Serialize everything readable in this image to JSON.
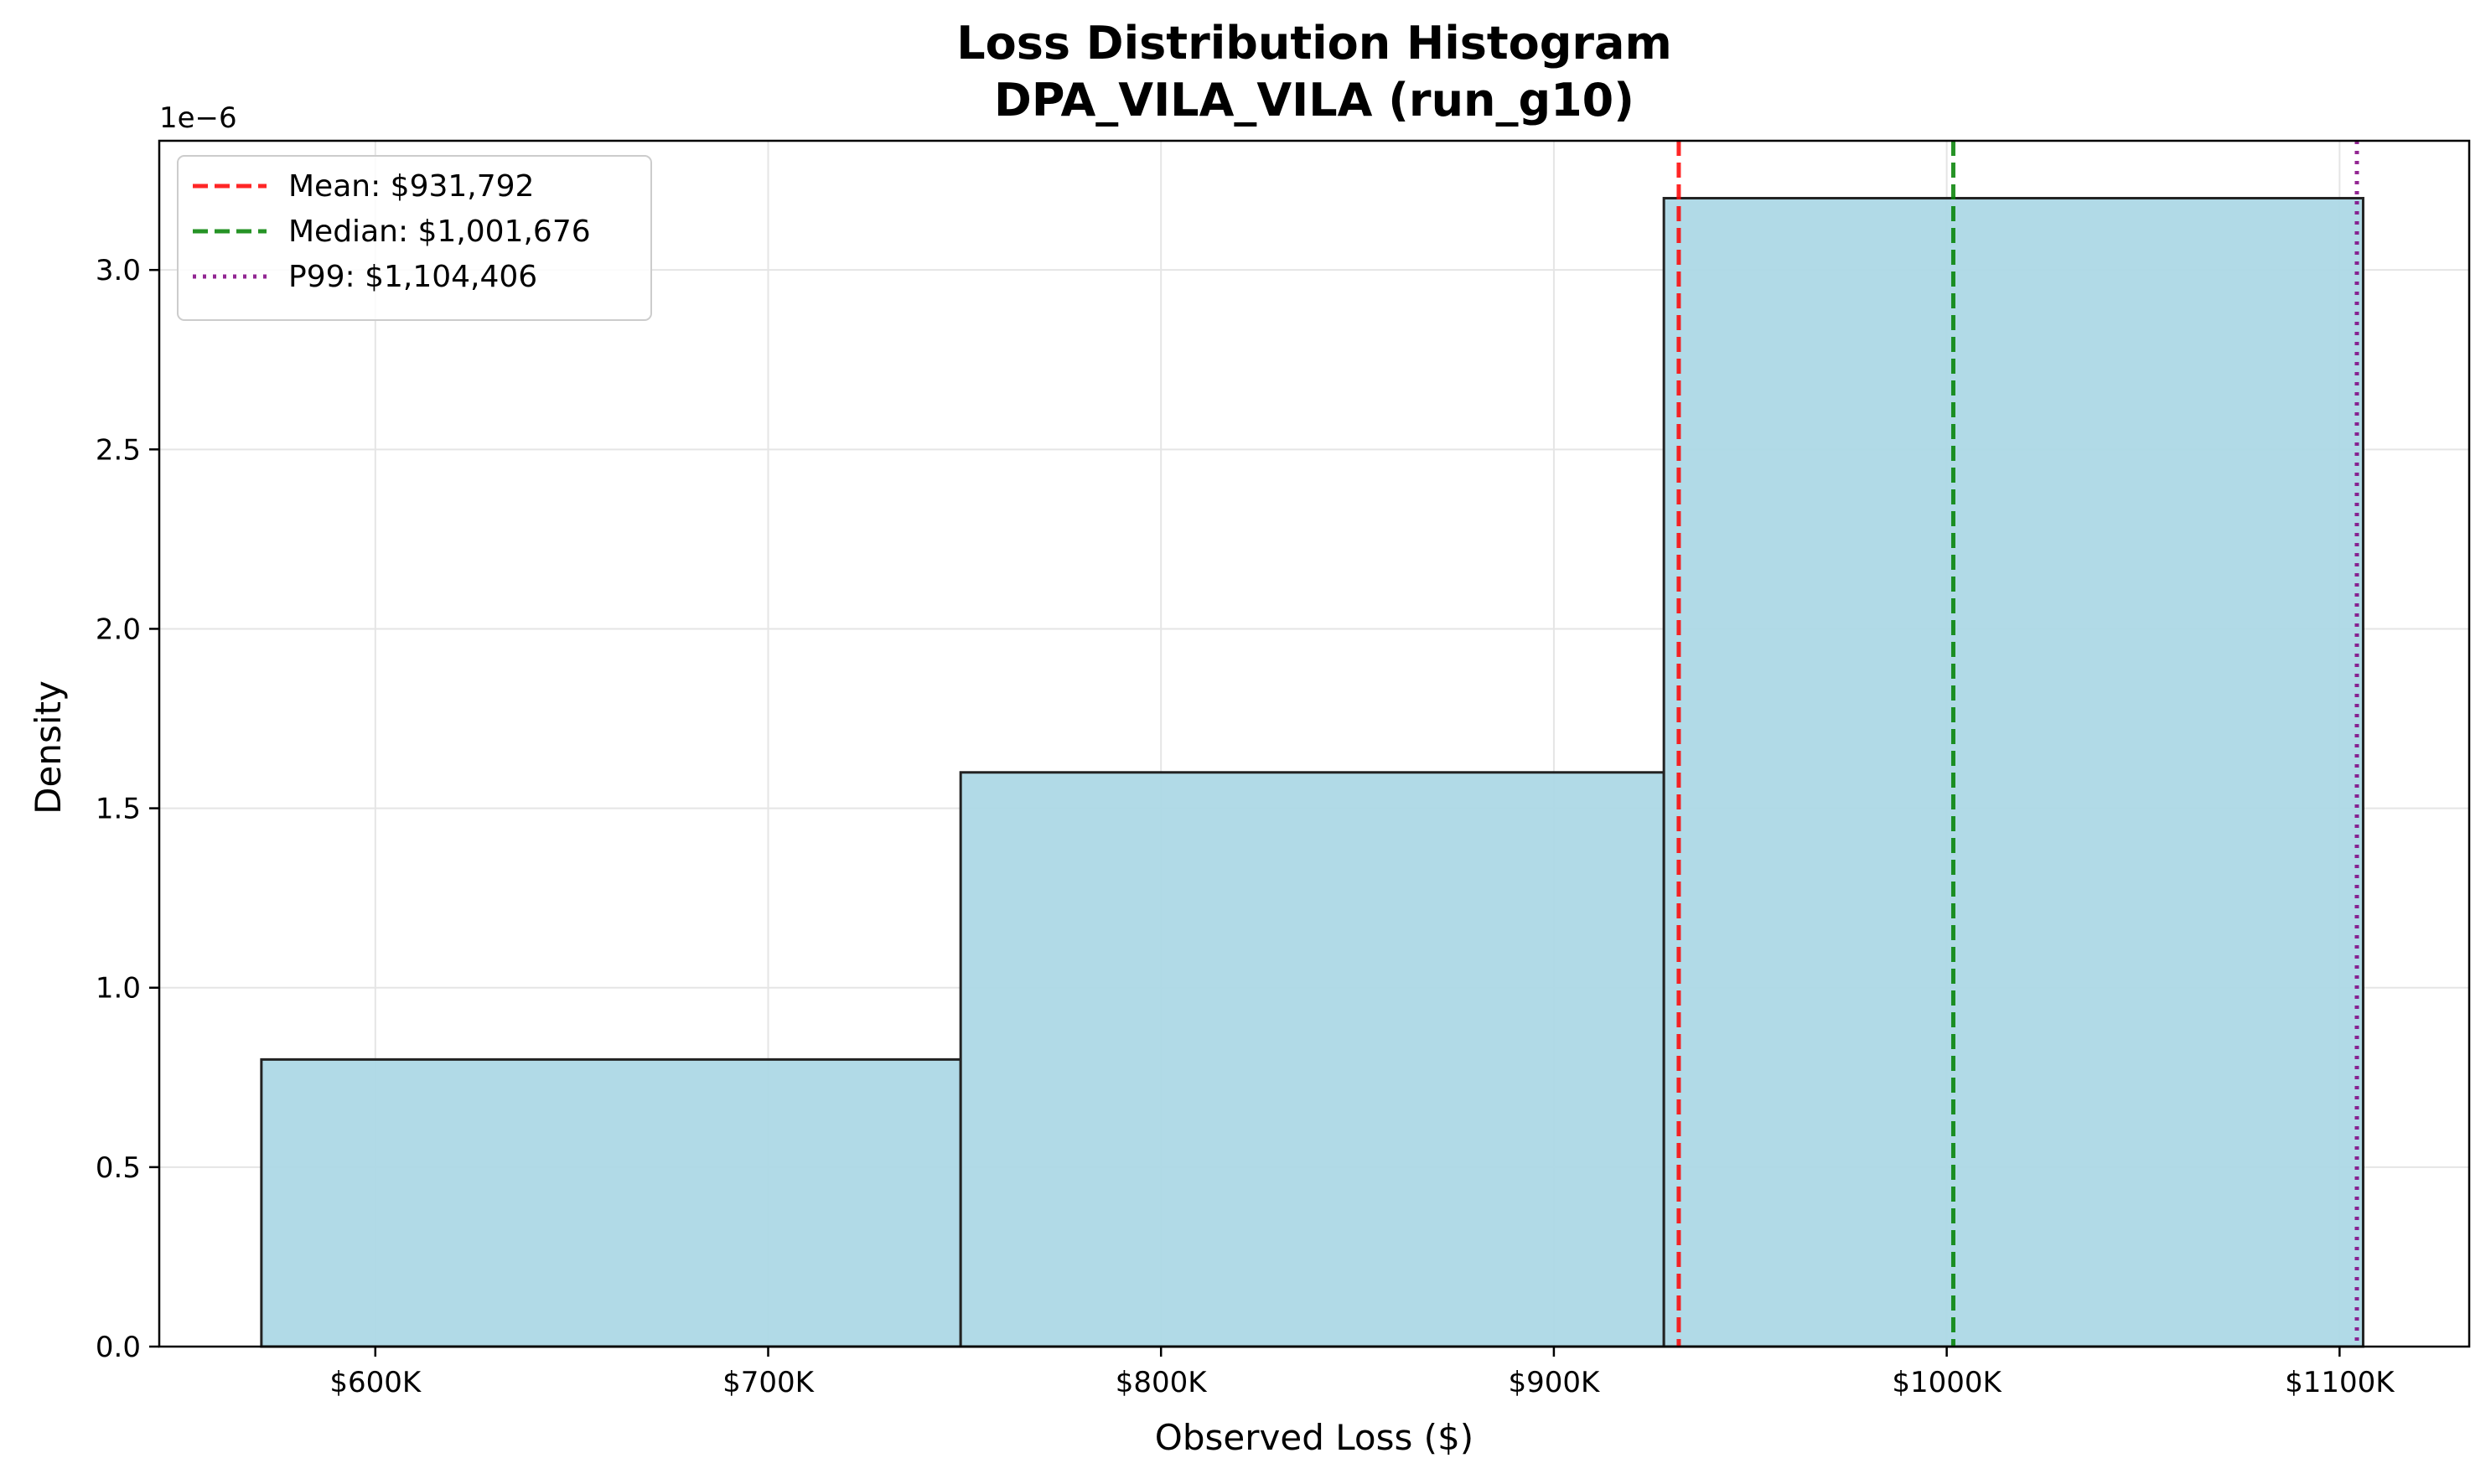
{
  "chart_data": {
    "type": "bar",
    "title": "Loss Distribution Histogram",
    "subtitle": "DPA_VILA_VILA (run_g10)",
    "xlabel": "Observed Loss ($)",
    "ylabel": "Density",
    "y_offset_text": "1e−6",
    "xlim": [
      545000,
      1133000
    ],
    "ylim": [
      0,
      3.36
    ],
    "grid": true,
    "bins": [
      {
        "x0": 571000,
        "x1": 749000,
        "value": 0.8
      },
      {
        "x0": 749000,
        "x1": 928000,
        "value": 1.6
      },
      {
        "x0": 928000,
        "x1": 1106000,
        "value": 3.2
      }
    ],
    "bar_color": "#ADD8E6",
    "x_ticks": [
      {
        "value": 600000,
        "label": "$600K"
      },
      {
        "value": 700000,
        "label": "$700K"
      },
      {
        "value": 800000,
        "label": "$800K"
      },
      {
        "value": 900000,
        "label": "$900K"
      },
      {
        "value": 1000000,
        "label": "$1000K"
      },
      {
        "value": 1100000,
        "label": "$1100K"
      }
    ],
    "y_ticks": [
      {
        "value": 0.0,
        "label": "0.0"
      },
      {
        "value": 0.5,
        "label": "0.5"
      },
      {
        "value": 1.0,
        "label": "1.0"
      },
      {
        "value": 1.5,
        "label": "1.5"
      },
      {
        "value": 2.0,
        "label": "2.0"
      },
      {
        "value": 2.5,
        "label": "2.5"
      },
      {
        "value": 3.0,
        "label": "3.0"
      }
    ],
    "reference_lines": [
      {
        "name": "Mean: $931,792",
        "value": 931792,
        "color": "#FF0000",
        "style": "dashed"
      },
      {
        "name": "Median: $1,001,676",
        "value": 1001676,
        "color": "#008000",
        "style": "dashed"
      },
      {
        "name": "P99: $1,104,406",
        "value": 1104406,
        "color": "#800080",
        "style": "dotted"
      }
    ],
    "legend_position": "upper-left"
  }
}
